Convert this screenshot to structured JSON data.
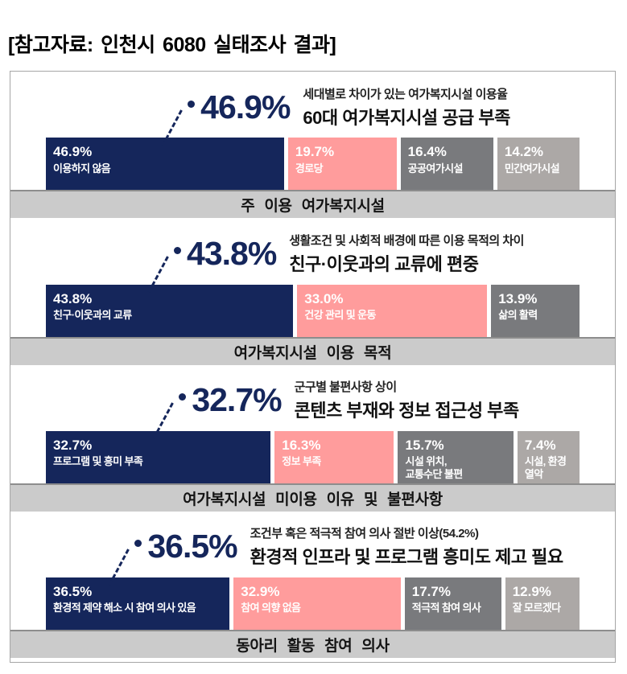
{
  "page_title": "[참고자료: 인천시 6080 실태조사 결과]",
  "colors": {
    "navy": "#15265b",
    "pink": "#ff9c9c",
    "gray": "#797a7d",
    "light_gray": "#aca8a6",
    "caption_bg": "#cbcbcb",
    "caption_border": "#8d8d8d",
    "board_border": "#a6a6a6",
    "highlight_text": "#15265b"
  },
  "panels": [
    {
      "highlight": "46.9%",
      "subtitle": "세대별로 차이가 있는 여가복지시설 이용율",
      "title": "60대 여가복지시설 공급 부족",
      "caption": "주 이용 여가복지시설",
      "segments": [
        {
          "value": 46.9,
          "pct": "46.9%",
          "label": "이용하지 않음",
          "color": "navy"
        },
        {
          "value": 19.7,
          "pct": "19.7%",
          "label": "경로당",
          "color": "pink"
        },
        {
          "value": 16.4,
          "pct": "16.4%",
          "label": "공공여가시설",
          "color": "gray"
        },
        {
          "value": 14.2,
          "pct": "14.2%",
          "label": "민간여가시설",
          "color": "light_gray"
        }
      ]
    },
    {
      "highlight": "43.8%",
      "subtitle": "생활조건 및 사회적 배경에 따른 이용 목적의 차이",
      "title": "친구·이웃과의 교류에 편중",
      "caption": "여가복지시설 이용 목적",
      "segments": [
        {
          "value": 43.8,
          "pct": "43.8%",
          "label": "친구·이웃과의 교류",
          "color": "navy"
        },
        {
          "value": 33.0,
          "pct": "33.0%",
          "label": "건강 관리 및 운동",
          "color": "pink"
        },
        {
          "value": 13.9,
          "pct": "13.9%",
          "label": "삶의 활력",
          "color": "gray"
        }
      ]
    },
    {
      "highlight": "32.7%",
      "subtitle": "군구별 불편사항 상이",
      "title": "콘텐츠 부재와 정보 접근성 부족",
      "caption": "여가복지시설 미이용 이유 및 불편사항",
      "segments": [
        {
          "value": 32.7,
          "pct": "32.7%",
          "label": "프로그램 및 흥미 부족",
          "color": "navy"
        },
        {
          "value": 16.3,
          "pct": "16.3%",
          "label": "정보 부족",
          "color": "pink"
        },
        {
          "value": 15.7,
          "pct": "15.7%",
          "label": "시설 위치,\n교통수단 불편",
          "color": "gray"
        },
        {
          "value": 7.4,
          "pct": "7.4%",
          "label": "시설, 환경 열악",
          "color": "light_gray"
        }
      ]
    },
    {
      "highlight": "36.5%",
      "subtitle": "조건부 혹은 적극적 참여 의사 절반 이상(54.2%)",
      "title": "환경적 인프라 및 프로그램 흥미도 제고 필요",
      "caption": "동아리 활동 참여 의사",
      "segments": [
        {
          "value": 36.5,
          "pct": "36.5%",
          "label": "환경적 제약 해소 시 참여 의사 있음",
          "color": "navy"
        },
        {
          "value": 32.9,
          "pct": "32.9%",
          "label": "참여 의향 없음",
          "color": "pink"
        },
        {
          "value": 17.7,
          "pct": "17.7%",
          "label": "적극적 참여 의사",
          "color": "gray"
        },
        {
          "value": 12.9,
          "pct": "12.9%",
          "label": "잘 모르겠다",
          "color": "light_gray"
        }
      ]
    }
  ],
  "chart_data": [
    {
      "type": "bar",
      "orientation": "horizontal-stacked",
      "unit": "%",
      "title": "주 이용 여가복지시설",
      "highlight_value": "46.9%",
      "annotation_subtitle": "세대별로 차이가 있는 여가복지시설 이용율",
      "annotation_title": "60대 여가복지시설 공급 부족",
      "categories": [
        "이용하지 않음",
        "경로당",
        "공공여가시설",
        "민간여가시설"
      ],
      "values": [
        46.9,
        19.7,
        16.4,
        14.2
      ]
    },
    {
      "type": "bar",
      "orientation": "horizontal-stacked",
      "unit": "%",
      "title": "여가복지시설 이용 목적",
      "highlight_value": "43.8%",
      "annotation_subtitle": "생활조건 및 사회적 배경에 따른 이용 목적의 차이",
      "annotation_title": "친구·이웃과의 교류에 편중",
      "categories": [
        "친구·이웃과의 교류",
        "건강 관리 및 운동",
        "삶의 활력"
      ],
      "values": [
        43.8,
        33.0,
        13.9
      ]
    },
    {
      "type": "bar",
      "orientation": "horizontal-stacked",
      "unit": "%",
      "title": "여가복지시설 미이용 이유 및 불편사항",
      "highlight_value": "32.7%",
      "annotation_subtitle": "군구별 불편사항 상이",
      "annotation_title": "콘텐츠 부재와 정보 접근성 부족",
      "categories": [
        "프로그램 및 흥미 부족",
        "정보 부족",
        "시설 위치, 교통수단 불편",
        "시설, 환경 열악"
      ],
      "values": [
        32.7,
        16.3,
        15.7,
        7.4
      ]
    },
    {
      "type": "bar",
      "orientation": "horizontal-stacked",
      "unit": "%",
      "title": "동아리 활동 참여 의사",
      "highlight_value": "36.5%",
      "annotation_subtitle": "조건부 혹은 적극적 참여 의사 절반 이상(54.2%)",
      "annotation_title": "환경적 인프라 및 프로그램 흥미도 제고 필요",
      "categories": [
        "환경적 제약 해소 시 참여 의사 있음",
        "참여 의향 없음",
        "적극적 참여 의사",
        "잘 모르겠다"
      ],
      "values": [
        36.5,
        32.9,
        17.7,
        12.9
      ]
    }
  ]
}
